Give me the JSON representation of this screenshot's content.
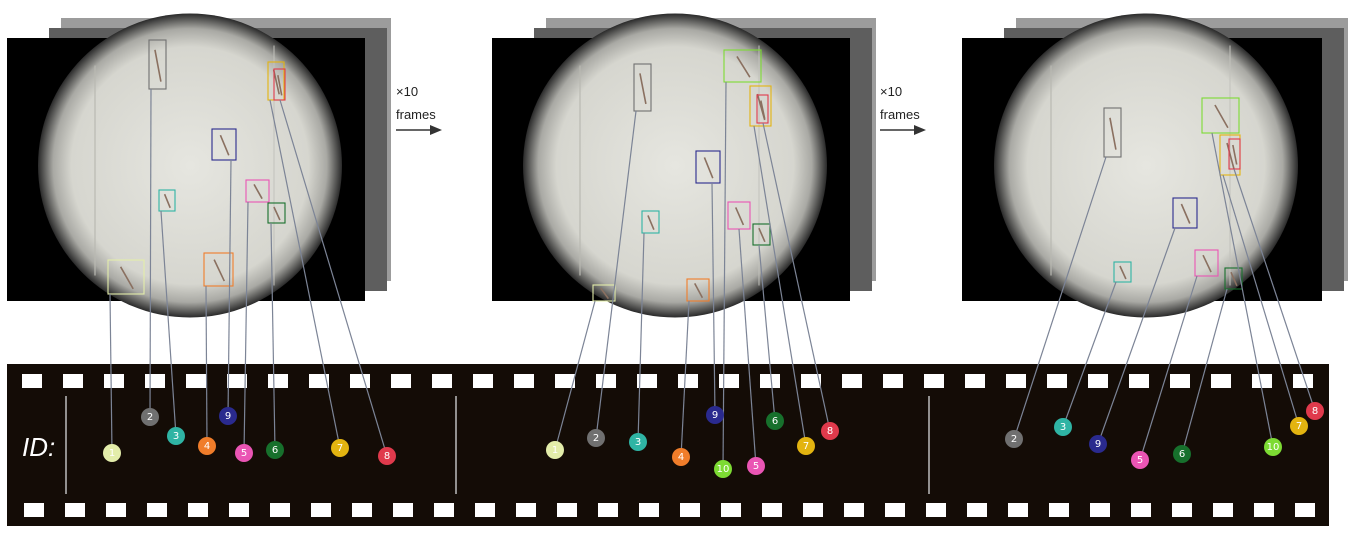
{
  "frame_arrows": [
    {
      "multiplier": "×10",
      "label": "frames"
    },
    {
      "multiplier": "×10",
      "label": "frames"
    }
  ],
  "id_label": "ID:",
  "colors": {
    "1": "#e3edaa",
    "2": "#707070",
    "3": "#2fb4a4",
    "4": "#f07d2a",
    "5": "#ea55b4",
    "6": "#17702c",
    "7": "#e3b410",
    "8": "#e03a4c",
    "9": "#2a2a8e",
    "10": "#7ddb33"
  },
  "frames": [
    {
      "name": "frame-1",
      "objects": [
        {
          "id": "1",
          "label": "1"
        },
        {
          "id": "2",
          "label": "2"
        },
        {
          "id": "3",
          "label": "3"
        },
        {
          "id": "4",
          "label": "4"
        },
        {
          "id": "5",
          "label": "5"
        },
        {
          "id": "6",
          "label": "6"
        },
        {
          "id": "7",
          "label": "7"
        },
        {
          "id": "8",
          "label": "8"
        },
        {
          "id": "9",
          "label": "9"
        }
      ]
    },
    {
      "name": "frame-2",
      "objects": [
        {
          "id": "1",
          "label": "1"
        },
        {
          "id": "2",
          "label": "2"
        },
        {
          "id": "3",
          "label": "3"
        },
        {
          "id": "4",
          "label": "4"
        },
        {
          "id": "5",
          "label": "5"
        },
        {
          "id": "6",
          "label": "6"
        },
        {
          "id": "7",
          "label": "7"
        },
        {
          "id": "8",
          "label": "8"
        },
        {
          "id": "9",
          "label": "9"
        },
        {
          "id": "10",
          "label": "10"
        }
      ]
    },
    {
      "name": "frame-3",
      "objects": [
        {
          "id": "2",
          "label": "2"
        },
        {
          "id": "3",
          "label": "3"
        },
        {
          "id": "5",
          "label": "5"
        },
        {
          "id": "6",
          "label": "6"
        },
        {
          "id": "7",
          "label": "7"
        },
        {
          "id": "8",
          "label": "8"
        },
        {
          "id": "9",
          "label": "9"
        },
        {
          "id": "10",
          "label": "10"
        }
      ]
    }
  ]
}
